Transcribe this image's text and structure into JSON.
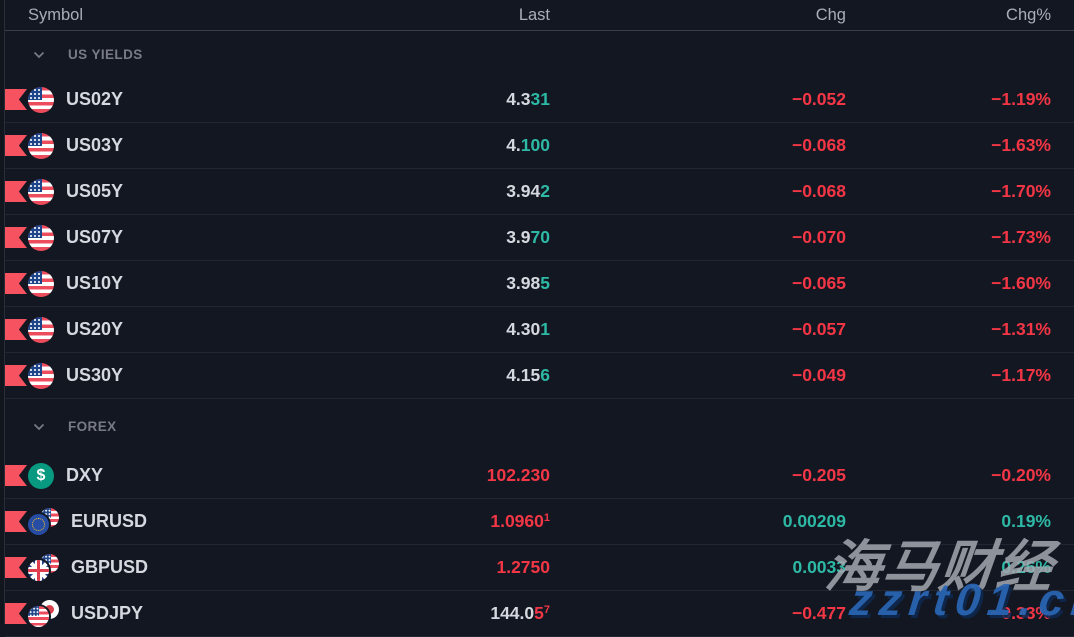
{
  "header": {
    "columns": [
      "Symbol",
      "Last",
      "Chg",
      "Chg%"
    ]
  },
  "palette": {
    "background": "#131722",
    "up_text": "#2db9a5",
    "down_text": "#f23645",
    "flag_marker": "#f7525f",
    "symbol_text": "#d5d8df",
    "section_text": "#787b86",
    "header_text": "#a9aeb8",
    "dxy_icon_green": "#089981"
  },
  "sections": [
    {
      "label": "US YIELDS",
      "collapse_icon": "chevron-down-icon",
      "rows": [
        {
          "symbol": "US02Y",
          "icon": "us-flag-icon",
          "flagged": true,
          "last_pre": "4.3",
          "last_main": "31",
          "last_sup": "",
          "last_dir": "up",
          "chg": "−0.052",
          "chg_pct": "−1.19%",
          "chg_dir": "down"
        },
        {
          "symbol": "US03Y",
          "icon": "us-flag-icon",
          "flagged": true,
          "last_pre": "4.",
          "last_main": "100",
          "last_sup": "",
          "last_dir": "up",
          "chg": "−0.068",
          "chg_pct": "−1.63%",
          "chg_dir": "down"
        },
        {
          "symbol": "US05Y",
          "icon": "us-flag-icon",
          "flagged": true,
          "last_pre": "3.94",
          "last_main": "2",
          "last_sup": "",
          "last_dir": "up",
          "chg": "−0.068",
          "chg_pct": "−1.70%",
          "chg_dir": "down"
        },
        {
          "symbol": "US07Y",
          "icon": "us-flag-icon",
          "flagged": true,
          "last_pre": "3.9",
          "last_main": "70",
          "last_sup": "",
          "last_dir": "up",
          "chg": "−0.070",
          "chg_pct": "−1.73%",
          "chg_dir": "down"
        },
        {
          "symbol": "US10Y",
          "icon": "us-flag-icon",
          "flagged": true,
          "last_pre": "3.98",
          "last_main": "5",
          "last_sup": "",
          "last_dir": "up",
          "chg": "−0.065",
          "chg_pct": "−1.60%",
          "chg_dir": "down"
        },
        {
          "symbol": "US20Y",
          "icon": "us-flag-icon",
          "flagged": true,
          "last_pre": "4.30",
          "last_main": "1",
          "last_sup": "",
          "last_dir": "up",
          "chg": "−0.057",
          "chg_pct": "−1.31%",
          "chg_dir": "down"
        },
        {
          "symbol": "US30Y",
          "icon": "us-flag-icon",
          "flagged": true,
          "last_pre": "4.15",
          "last_main": "6",
          "last_sup": "",
          "last_dir": "up",
          "chg": "−0.049",
          "chg_pct": "−1.17%",
          "chg_dir": "down"
        }
      ]
    },
    {
      "label": "FOREX",
      "collapse_icon": "chevron-down-icon",
      "rows": [
        {
          "symbol": "DXY",
          "icon": "usd-index-icon",
          "flagged": true,
          "last_pre": "",
          "last_main": "102.230",
          "last_sup": "",
          "last_dir": "down",
          "chg": "−0.205",
          "chg_pct": "−0.20%",
          "chg_dir": "down"
        },
        {
          "symbol": "EURUSD",
          "icon": "eur-usd-flags-icon",
          "flagged": true,
          "last_pre": "",
          "last_main": "1.0960",
          "last_sup": "1",
          "last_dir": "down",
          "chg": "0.00209",
          "chg_pct": "0.19%",
          "chg_dir": "up"
        },
        {
          "symbol": "GBPUSD",
          "icon": "gbp-usd-flags-icon",
          "flagged": true,
          "last_pre": "",
          "last_main": "1.2750",
          "last_sup": "",
          "last_dir": "down",
          "chg": "0.0033",
          "chg_pct": "0.26%",
          "chg_dir": "up"
        },
        {
          "symbol": "USDJPY",
          "icon": "usd-jpy-flags-icon",
          "flagged": true,
          "last_pre": "144.0",
          "last_main": "5",
          "last_sup": "7",
          "last_dir": "down",
          "chg": "−0.477",
          "chg_pct": "−0.33%",
          "chg_dir": "down"
        }
      ]
    }
  ],
  "watermark": {
    "line1": "海马财经",
    "line2": "zzrt01.cn"
  }
}
